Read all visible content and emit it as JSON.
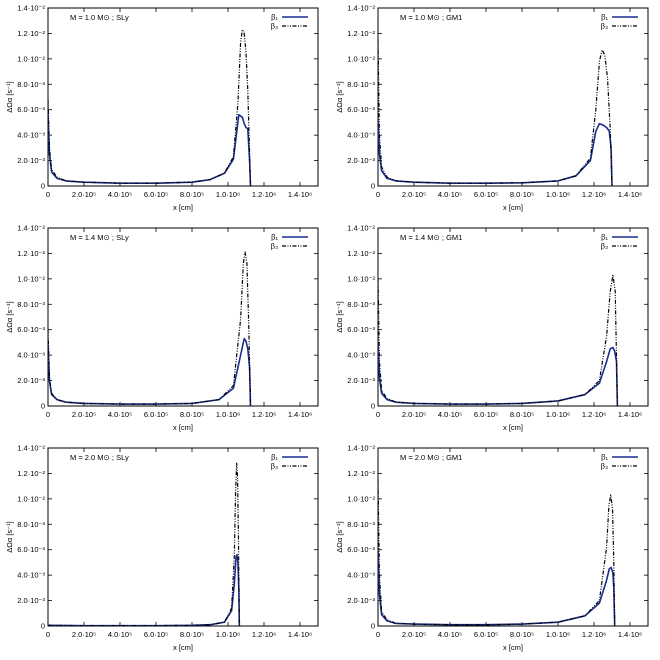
{
  "figure": {
    "colors": {
      "beta1": "#1a2d8f",
      "beta3": "#000000",
      "axis": "#000000",
      "background": "#ffffff"
    },
    "layout": "3 rows x 2 columns"
  },
  "chart_data": [
    {
      "id": "p11",
      "type": "line",
      "annotation": "M = 1.0 M⊙ ; SLy",
      "xlabel": "x [cm]",
      "ylabel": "ΔΩα [s⁻¹]",
      "xlim": [
        0,
        1500000
      ],
      "ylim": [
        0,
        0.014
      ],
      "xticks": [
        0,
        200000,
        400000,
        600000,
        800000,
        1000000,
        1200000,
        1400000
      ],
      "xtick_labels": [
        "0",
        "2.0·10⁵",
        "4.0·10⁵",
        "6.0·10⁵",
        "8.0·10⁵",
        "1.0·10⁶",
        "1.2·10⁶",
        "1.4·10⁶"
      ],
      "yticks": [
        0,
        0.002,
        0.004,
        0.006,
        0.008,
        0.01,
        0.012,
        0.014
      ],
      "ytick_labels": [
        "0",
        "2.0·10⁻³",
        "4.0·10⁻³",
        "6.0·10⁻³",
        "8.0·10⁻³",
        "1.0·10⁻²",
        "1.2·10⁻²",
        "1.4·10⁻²"
      ],
      "legend": {
        "position": "top-right",
        "entries": [
          "β₁",
          "β₃"
        ]
      },
      "grid": false,
      "series": [
        {
          "name": "β₁",
          "style": "solid",
          "x": [
            0,
            8000,
            20000,
            50000,
            100000,
            200000,
            400000,
            600000,
            800000,
            900000,
            980000,
            1030000,
            1060000,
            1080000,
            1090000,
            1100000,
            1110000,
            1120000,
            1125000
          ],
          "y": [
            0.0057,
            0.0025,
            0.0011,
            0.0006,
            0.0004,
            0.0003,
            0.00022,
            0.00022,
            0.0003,
            0.0005,
            0.001,
            0.0021,
            0.0056,
            0.0054,
            0.0049,
            0.0046,
            0.0045,
            0.002,
            0
          ]
        },
        {
          "name": "β₃",
          "style": "dash-dot-dot",
          "x": [
            0,
            8000,
            20000,
            50000,
            100000,
            200000,
            400000,
            600000,
            800000,
            900000,
            980000,
            1030000,
            1055000,
            1070000,
            1080000,
            1090000,
            1100000,
            1110000,
            1120000,
            1125000
          ],
          "y": [
            0.0068,
            0.003,
            0.0013,
            0.0007,
            0.0004,
            0.0003,
            0.00022,
            0.00022,
            0.0003,
            0.0005,
            0.001,
            0.0023,
            0.0065,
            0.0113,
            0.0123,
            0.012,
            0.0105,
            0.0075,
            0.0025,
            0
          ]
        }
      ]
    },
    {
      "id": "p12",
      "type": "line",
      "annotation": "M = 1.0 M⊙ ; GM1",
      "xlabel": "x [cm]",
      "ylabel": "ΔΩα [s⁻¹]",
      "xlim": [
        0,
        1500000
      ],
      "ylim": [
        0,
        0.014
      ],
      "xticks": [
        0,
        200000,
        400000,
        600000,
        800000,
        1000000,
        1200000,
        1400000
      ],
      "xtick_labels": [
        "0",
        "2.0·10⁵",
        "4.0·10⁵",
        "6.0·10⁵",
        "8.0·10⁵",
        "1.0·10⁶",
        "1.2·10⁶",
        "1.4·10⁶"
      ],
      "yticks": [
        0,
        0.002,
        0.004,
        0.006,
        0.008,
        0.01,
        0.012,
        0.014
      ],
      "ytick_labels": [
        "0",
        "2.0·10⁻³",
        "4.0·10⁻³",
        "6.0·10⁻³",
        "8.0·10⁻³",
        "1.0·10⁻²",
        "1.2·10⁻²",
        "1.4·10⁻²"
      ],
      "legend": {
        "position": "top-right",
        "entries": [
          "β₁",
          "β₃"
        ]
      },
      "grid": false,
      "series": [
        {
          "name": "β₁",
          "style": "solid",
          "x": [
            0,
            8000,
            20000,
            50000,
            100000,
            200000,
            400000,
            600000,
            800000,
            1000000,
            1100000,
            1180000,
            1210000,
            1230000,
            1250000,
            1270000,
            1285000,
            1295000,
            1300000
          ],
          "y": [
            0.0053,
            0.0025,
            0.0012,
            0.0006,
            0.0004,
            0.0003,
            0.00022,
            0.00022,
            0.00025,
            0.0004,
            0.0008,
            0.002,
            0.0043,
            0.0049,
            0.0048,
            0.0046,
            0.0043,
            0.003,
            0
          ]
        },
        {
          "name": "β₃",
          "style": "dash-dot-dot",
          "x": [
            0,
            8000,
            20000,
            50000,
            100000,
            200000,
            400000,
            600000,
            800000,
            1000000,
            1100000,
            1180000,
            1210000,
            1230000,
            1245000,
            1260000,
            1275000,
            1290000,
            1300000
          ],
          "y": [
            0.0115,
            0.004,
            0.0015,
            0.0007,
            0.0004,
            0.0003,
            0.00022,
            0.00022,
            0.00025,
            0.0004,
            0.0008,
            0.0022,
            0.006,
            0.0098,
            0.0107,
            0.0103,
            0.0085,
            0.0045,
            0
          ]
        }
      ]
    },
    {
      "id": "p21",
      "type": "line",
      "annotation": "M = 1.4 M⊙ ; SLy",
      "xlabel": "x [cm]",
      "ylabel": "ΔΩα [s⁻¹]",
      "xlim": [
        0,
        1500000
      ],
      "ylim": [
        0,
        0.014
      ],
      "xticks": [
        0,
        200000,
        400000,
        600000,
        800000,
        1000000,
        1200000,
        1400000
      ],
      "xtick_labels": [
        "0",
        "2.0·10⁵",
        "4.0·10⁵",
        "6.0·10⁵",
        "8.0·10⁵",
        "1.0·10⁶",
        "1.2·10⁶",
        "1.4·10⁶"
      ],
      "yticks": [
        0,
        0.002,
        0.004,
        0.006,
        0.008,
        0.01,
        0.012,
        0.014
      ],
      "ytick_labels": [
        "0",
        "2.0·10⁻³",
        "4.0·10⁻³",
        "6.0·10⁻³",
        "8.0·10⁻³",
        "1.0·10⁻²",
        "1.2·10⁻²",
        "1.4·10⁻²"
      ],
      "legend": {
        "position": "top-right",
        "entries": [
          "β₁",
          "β₃"
        ]
      },
      "grid": false,
      "series": [
        {
          "name": "β₁",
          "style": "solid",
          "x": [
            0,
            8000,
            20000,
            50000,
            100000,
            200000,
            400000,
            600000,
            800000,
            950000,
            1030000,
            1070000,
            1090000,
            1100000,
            1110000,
            1120000,
            1125000
          ],
          "y": [
            0.005,
            0.002,
            0.0009,
            0.0005,
            0.0003,
            0.0002,
            0.00015,
            0.00015,
            0.0002,
            0.0005,
            0.0014,
            0.004,
            0.0053,
            0.0051,
            0.0045,
            0.003,
            0
          ]
        },
        {
          "name": "β₃",
          "style": "dash-dot-dot",
          "x": [
            0,
            8000,
            20000,
            50000,
            100000,
            200000,
            400000,
            600000,
            800000,
            950000,
            1030000,
            1070000,
            1085000,
            1095000,
            1105000,
            1115000,
            1125000
          ],
          "y": [
            0.006,
            0.0022,
            0.001,
            0.0005,
            0.0003,
            0.0002,
            0.00015,
            0.00015,
            0.0002,
            0.0005,
            0.0016,
            0.0068,
            0.0112,
            0.0121,
            0.0112,
            0.0065,
            0
          ]
        }
      ]
    },
    {
      "id": "p22",
      "type": "line",
      "annotation": "M = 1.4 M⊙ ; GM1",
      "xlabel": "x [cm]",
      "ylabel": "ΔΩα [s⁻¹]",
      "xlim": [
        0,
        1500000
      ],
      "ylim": [
        0,
        0.014
      ],
      "xticks": [
        0,
        200000,
        400000,
        600000,
        800000,
        1000000,
        1200000,
        1400000
      ],
      "xtick_labels": [
        "0",
        "2.0·10⁵",
        "4.0·10⁵",
        "6.0·10⁵",
        "8.0·10⁵",
        "1.0·10⁶",
        "1.2·10⁶",
        "1.4·10⁶"
      ],
      "yticks": [
        0,
        0.002,
        0.004,
        0.006,
        0.008,
        0.01,
        0.012,
        0.014
      ],
      "ytick_labels": [
        "0",
        "2.0·10⁻³",
        "4.0·10⁻³",
        "6.0·10⁻³",
        "8.0·10⁻³",
        "1.0·10⁻²",
        "1.2·10⁻²",
        "1.4·10⁻²"
      ],
      "legend": {
        "position": "top-right",
        "entries": [
          "β₁",
          "β₃"
        ]
      },
      "grid": false,
      "series": [
        {
          "name": "β₁",
          "style": "solid",
          "x": [
            0,
            8000,
            20000,
            50000,
            100000,
            200000,
            400000,
            600000,
            800000,
            1000000,
            1150000,
            1230000,
            1270000,
            1290000,
            1305000,
            1315000,
            1325000,
            1330000
          ],
          "y": [
            0.005,
            0.0022,
            0.001,
            0.0005,
            0.0003,
            0.0002,
            0.00015,
            0.00015,
            0.0002,
            0.0004,
            0.0009,
            0.0018,
            0.0035,
            0.0045,
            0.0046,
            0.0043,
            0.0035,
            0
          ]
        },
        {
          "name": "β₃",
          "style": "dash-dot-dot",
          "x": [
            0,
            8000,
            20000,
            50000,
            100000,
            200000,
            400000,
            600000,
            800000,
            1000000,
            1150000,
            1230000,
            1270000,
            1290000,
            1305000,
            1318000,
            1330000
          ],
          "y": [
            0.01,
            0.0035,
            0.0012,
            0.0006,
            0.0003,
            0.0002,
            0.00015,
            0.00015,
            0.0002,
            0.0004,
            0.0009,
            0.002,
            0.0055,
            0.009,
            0.0103,
            0.009,
            0
          ]
        }
      ]
    },
    {
      "id": "p31",
      "type": "line",
      "annotation": "M = 2.0 M⊙ ; SLy",
      "xlabel": "x [cm]",
      "ylabel": "ΔΩα [s⁻¹]",
      "xlim": [
        0,
        1500000
      ],
      "ylim": [
        0,
        0.014
      ],
      "xticks": [
        0,
        200000,
        400000,
        600000,
        800000,
        1000000,
        1200000,
        1400000
      ],
      "xtick_labels": [
        "0",
        "2.0·10⁵",
        "4.0·10⁵",
        "6.0·10⁵",
        "8.0·10⁵",
        "1.0·10⁶",
        "1.2·10⁶",
        "1.4·10⁶"
      ],
      "yticks": [
        0,
        0.002,
        0.004,
        0.006,
        0.008,
        0.01,
        0.012,
        0.014
      ],
      "ytick_labels": [
        "0",
        "2.0·10⁻³",
        "4.0·10⁻³",
        "6.0·10⁻³",
        "8.0·10⁻³",
        "1.0·10⁻²",
        "1.2·10⁻²",
        "1.4·10⁻²"
      ],
      "legend": {
        "position": "top-right",
        "entries": [
          "β₁",
          "β₃"
        ]
      },
      "grid": false,
      "series": [
        {
          "name": "β₁",
          "style": "solid",
          "x": [
            0,
            200000,
            400000,
            600000,
            800000,
            900000,
            980000,
            1020000,
            1035000,
            1045000,
            1050000,
            1055000,
            1060000,
            1063000
          ],
          "y": [
            5e-05,
            3e-05,
            3e-05,
            3e-05,
            5e-05,
            0.0001,
            0.0003,
            0.0012,
            0.0033,
            0.0055,
            0.0056,
            0.005,
            0.003,
            0
          ]
        },
        {
          "name": "β₃",
          "style": "dash-dot-dot",
          "x": [
            0,
            200000,
            400000,
            600000,
            800000,
            900000,
            980000,
            1020000,
            1035000,
            1042000,
            1048000,
            1053000,
            1058000,
            1063000
          ],
          "y": [
            5e-05,
            3e-05,
            3e-05,
            3e-05,
            5e-05,
            0.0001,
            0.0003,
            0.0014,
            0.0055,
            0.0105,
            0.0128,
            0.0118,
            0.007,
            0
          ]
        }
      ]
    },
    {
      "id": "p32",
      "type": "line",
      "annotation": "M = 2.0 M⊙ ; GM1",
      "xlabel": "x [cm]",
      "ylabel": "ΔΩα [s⁻¹]",
      "xlim": [
        0,
        1500000
      ],
      "ylim": [
        0,
        0.014
      ],
      "xticks": [
        0,
        200000,
        400000,
        600000,
        800000,
        1000000,
        1200000,
        1400000
      ],
      "xtick_labels": [
        "0",
        "2.0·10⁵",
        "4.0·10⁵",
        "6.0·10⁵",
        "8.0·10⁵",
        "1.0·10⁶",
        "1.2·10⁶",
        "1.4·10⁶"
      ],
      "yticks": [
        0,
        0.002,
        0.004,
        0.006,
        0.008,
        0.01,
        0.012,
        0.014
      ],
      "ytick_labels": [
        "0",
        "2.0·10⁻³",
        "4.0·10⁻³",
        "6.0·10⁻³",
        "8.0·10⁻³",
        "1.0·10⁻²",
        "1.2·10⁻²",
        "1.4·10⁻²"
      ],
      "legend": {
        "position": "top-right",
        "entries": [
          "β₁",
          "β₃"
        ]
      },
      "grid": false,
      "series": [
        {
          "name": "β₁",
          "style": "solid",
          "x": [
            0,
            8000,
            20000,
            50000,
            100000,
            200000,
            400000,
            600000,
            800000,
            1000000,
            1150000,
            1230000,
            1270000,
            1285000,
            1295000,
            1305000,
            1310000,
            1315000
          ],
          "y": [
            0.006,
            0.0025,
            0.0009,
            0.0004,
            0.0002,
            0.00015,
            0.0001,
            0.0001,
            0.00015,
            0.0003,
            0.0008,
            0.0018,
            0.0036,
            0.0045,
            0.0046,
            0.0042,
            0.003,
            0
          ]
        },
        {
          "name": "β₃",
          "style": "dash-dot-dot",
          "x": [
            0,
            8000,
            20000,
            50000,
            100000,
            200000,
            400000,
            600000,
            800000,
            1000000,
            1150000,
            1230000,
            1270000,
            1283000,
            1293000,
            1303000,
            1310000,
            1315000
          ],
          "y": [
            0.0115,
            0.004,
            0.0011,
            0.0005,
            0.0002,
            0.00015,
            0.0001,
            0.0001,
            0.00015,
            0.0003,
            0.0008,
            0.002,
            0.0062,
            0.0095,
            0.0103,
            0.0092,
            0.005,
            0
          ]
        }
      ]
    }
  ]
}
